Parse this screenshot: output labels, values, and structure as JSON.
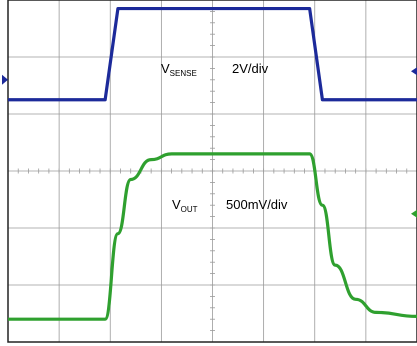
{
  "colors": {
    "background": "#ffffff",
    "grid": "#9a9a9a",
    "frame": "#222222",
    "vsense_trace": "#1c2a9a",
    "vout_trace": "#2fa02f"
  },
  "chart_data": {
    "type": "line",
    "title": "",
    "grid": true,
    "x_divisions": 8,
    "y_divisions": 6,
    "x": [
      0,
      1.0,
      1.9,
      2.15,
      2.4,
      2.8,
      3.2,
      4.0,
      5.0,
      5.9,
      6.15,
      6.4,
      6.8,
      7.2,
      8.0
    ],
    "series": [
      {
        "key": "vsense",
        "name_main": "V",
        "name_sub": "SENSE",
        "scale": "2V/div",
        "color": "#1c2a9a",
        "values_div": [
          4.25,
          4.25,
          4.25,
          5.85,
          5.85,
          5.85,
          5.85,
          5.85,
          5.85,
          5.85,
          4.25,
          4.25,
          4.25,
          4.25,
          4.25
        ]
      },
      {
        "key": "vout",
        "name_main": "V",
        "name_sub": "OUT",
        "scale": "500mV/div",
        "color": "#2fa02f",
        "values_div": [
          0.4,
          0.4,
          0.4,
          1.9,
          2.85,
          3.2,
          3.3,
          3.3,
          3.3,
          3.3,
          2.4,
          1.35,
          0.75,
          0.52,
          0.45
        ]
      }
    ],
    "markers": [
      {
        "name": "vsense-ground-marker",
        "color": "#1c2a9a",
        "side": "left",
        "level_div": 4.6
      },
      {
        "name": "right-marker-1",
        "color": "#1c2a9a",
        "side": "right",
        "level_div": 4.75
      },
      {
        "name": "right-marker-2",
        "color": "#2fa02f",
        "side": "right",
        "level_div": 2.25
      }
    ]
  }
}
